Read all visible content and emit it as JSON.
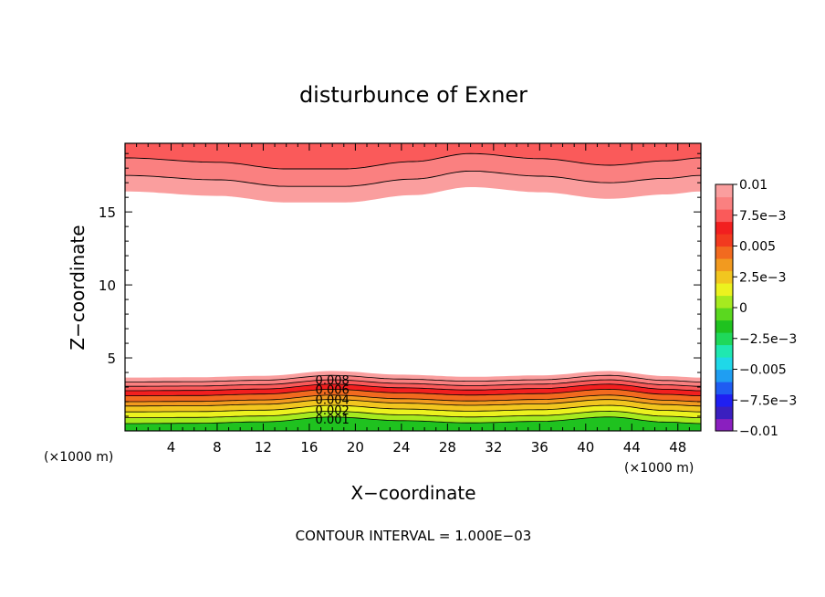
{
  "chart_data": {
    "type": "contour",
    "title": "disturbunce of Exner",
    "xlabel": "X−coordinate",
    "ylabel": "Z−coordinate",
    "x_unit_label": "(×1000 m)",
    "z_unit_label": "(×1000 m)",
    "xlim": [
      0,
      50
    ],
    "ylim": [
      0,
      19.7
    ],
    "x_ticks": [
      "4",
      "8",
      "12",
      "16",
      "20",
      "24",
      "28",
      "32",
      "36",
      "40",
      "44",
      "48"
    ],
    "y_ticks": [
      "5",
      "10",
      "15"
    ],
    "contour_interval_text": "CONTOUR INTERVAL = 1.000E−03",
    "contour_labels": [
      "0.008",
      "0.006",
      "0.004",
      "0.002",
      "0.001"
    ],
    "colorbar": {
      "labels": [
        "0.01",
        "7.5e−3",
        "0.005",
        "2.5e−3",
        "0",
        "−2.5e−3",
        "−0.005",
        "−7.5e−3",
        "−0.01"
      ],
      "colors": [
        "#8a1fbf",
        "#3a1fbf",
        "#1f1ff2",
        "#1f5cf2",
        "#1f9ef2",
        "#1fd8e8",
        "#1fe8b0",
        "#1fd85a",
        "#1fc21f",
        "#5ad81f",
        "#a6ea1f",
        "#ecf21f",
        "#f2c61f",
        "#f29a1f",
        "#f26a1f",
        "#f23a1f",
        "#f21f1f",
        "#fa5a5a",
        "#fa8080",
        "#fa9e9e"
      ]
    },
    "bottom_layer": {
      "levels_top_km": [
        0.5,
        0.9,
        1.3,
        1.7,
        2.0,
        2.4,
        2.75,
        3.05,
        3.35,
        3.65
      ],
      "fills": [
        "#1fc21f",
        "#5ad81f",
        "#a6ea1f",
        "#ecf21f",
        "#f2c61f",
        "#f29a1f",
        "#f26a1f",
        "#f21f1f",
        "#fa5a5a",
        "#fa8080"
      ],
      "bump": [
        [
          0,
          0
        ],
        [
          6,
          0.02
        ],
        [
          12,
          0.12
        ],
        [
          18,
          0.45
        ],
        [
          24,
          0.2
        ],
        [
          30,
          0.05
        ],
        [
          36,
          0.15
        ],
        [
          42,
          0.45
        ],
        [
          47,
          0.1
        ],
        [
          50,
          0
        ]
      ]
    },
    "top_layer": {
      "boundaries_km": [
        16.4,
        17.5,
        18.7
      ],
      "fills": [
        "#fa9e9e",
        "#fa8080",
        "#fa5a5a"
      ],
      "wave": [
        [
          0,
          0
        ],
        [
          8,
          -0.3
        ],
        [
          14,
          -0.75
        ],
        [
          19,
          -0.75
        ],
        [
          25,
          -0.25
        ],
        [
          30,
          0.3
        ],
        [
          36,
          -0.05
        ],
        [
          42,
          -0.5
        ],
        [
          47,
          -0.2
        ],
        [
          50,
          0
        ]
      ]
    }
  }
}
